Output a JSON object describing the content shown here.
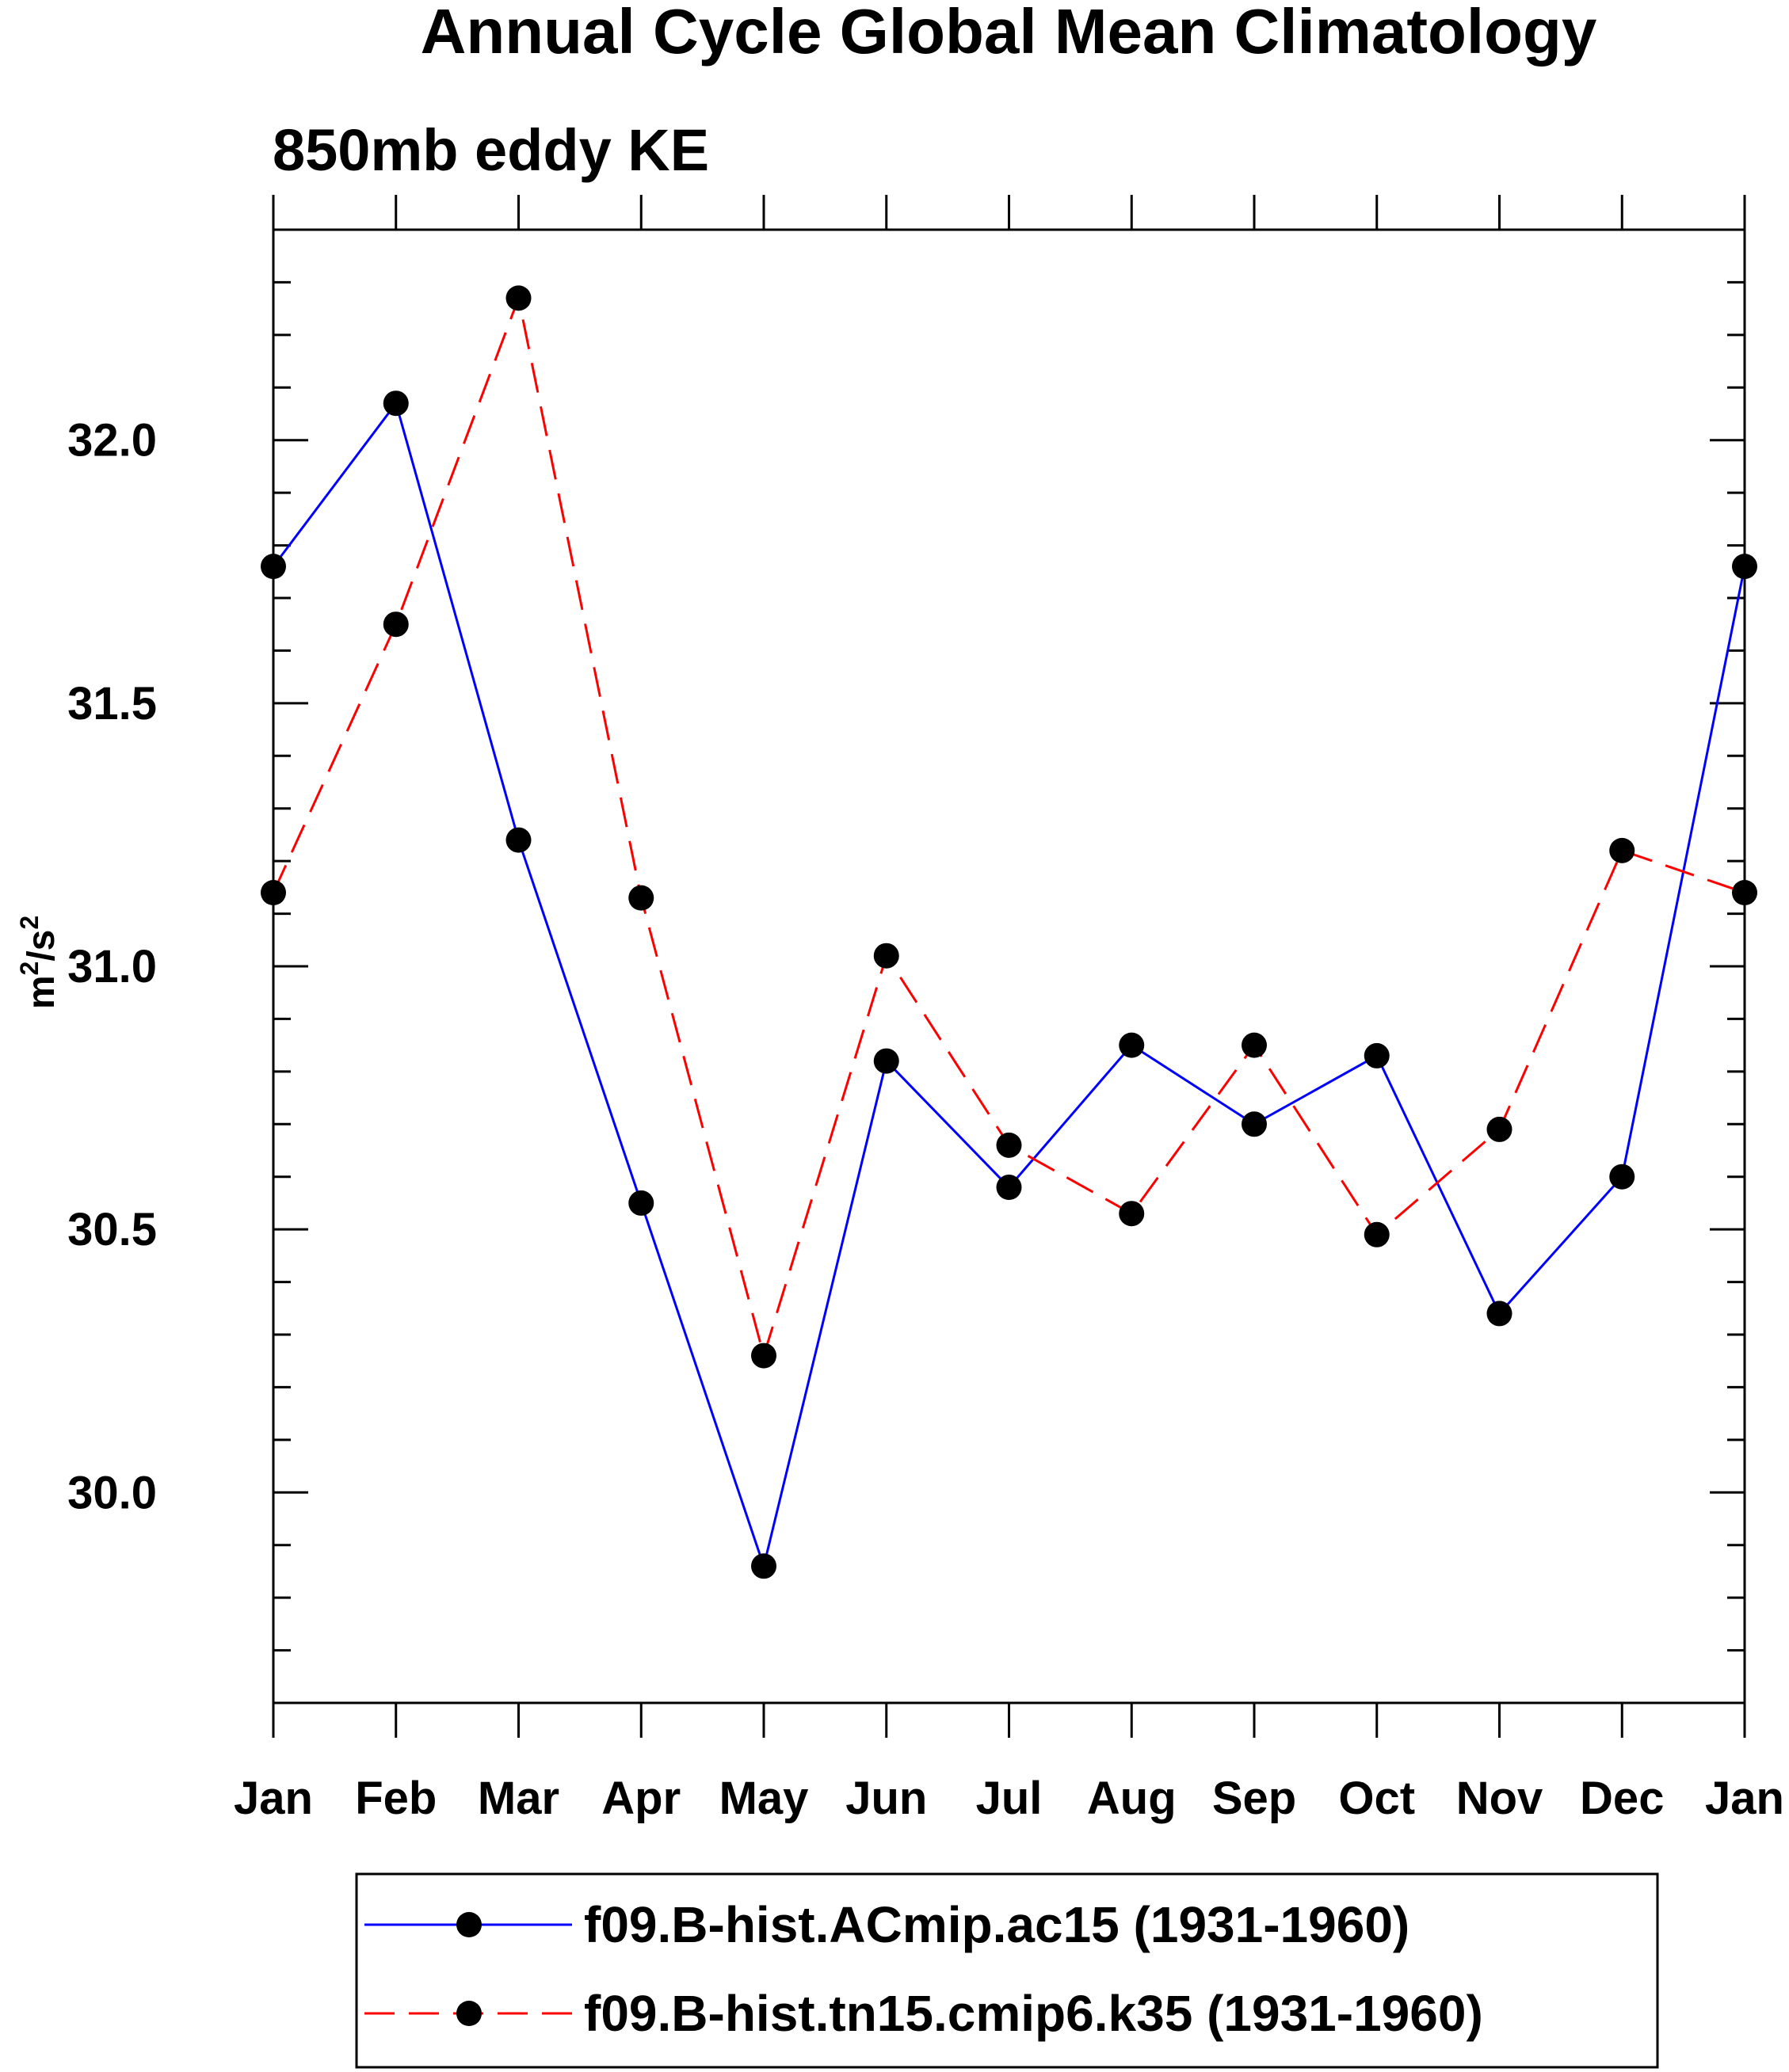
{
  "chart_data": {
    "type": "line",
    "title": "Annual Cycle Global Mean Climatology",
    "subtitle": "850mb eddy KE",
    "ylabel_base": "m",
    "ylabel_sup1": "2",
    "ylabel_mid": "/s",
    "ylabel_sup2": "2",
    "xlabel": "",
    "categories": [
      "Jan",
      "Feb",
      "Mar",
      "Apr",
      "May",
      "Jun",
      "Jul",
      "Aug",
      "Sep",
      "Oct",
      "Nov",
      "Dec",
      "Jan"
    ],
    "ylim": [
      29.6,
      32.4
    ],
    "yticks": [
      30.0,
      30.5,
      31.0,
      31.5,
      32.0
    ],
    "ytick_labels": [
      "30.0",
      "30.5",
      "31.0",
      "31.5",
      "32.0"
    ],
    "y_minor_step": 0.1,
    "grid": false,
    "legend_position": "bottom",
    "series": [
      {
        "name": "f09.B-hist.ACmip.ac15 (1931-1960)",
        "color": "#0000ff",
        "dash": "solid",
        "values": [
          31.76,
          32.07,
          31.24,
          30.55,
          29.86,
          30.82,
          30.58,
          30.85,
          30.7,
          30.83,
          30.34,
          30.6,
          31.76
        ]
      },
      {
        "name": "f09.B-hist.tn15.cmip6.k35 (1931-1960)",
        "color": "#ff0000",
        "dash": "dashed",
        "values": [
          31.14,
          31.65,
          32.27,
          31.13,
          30.26,
          31.02,
          30.66,
          30.53,
          30.85,
          30.49,
          30.69,
          31.22,
          31.14
        ]
      }
    ]
  }
}
